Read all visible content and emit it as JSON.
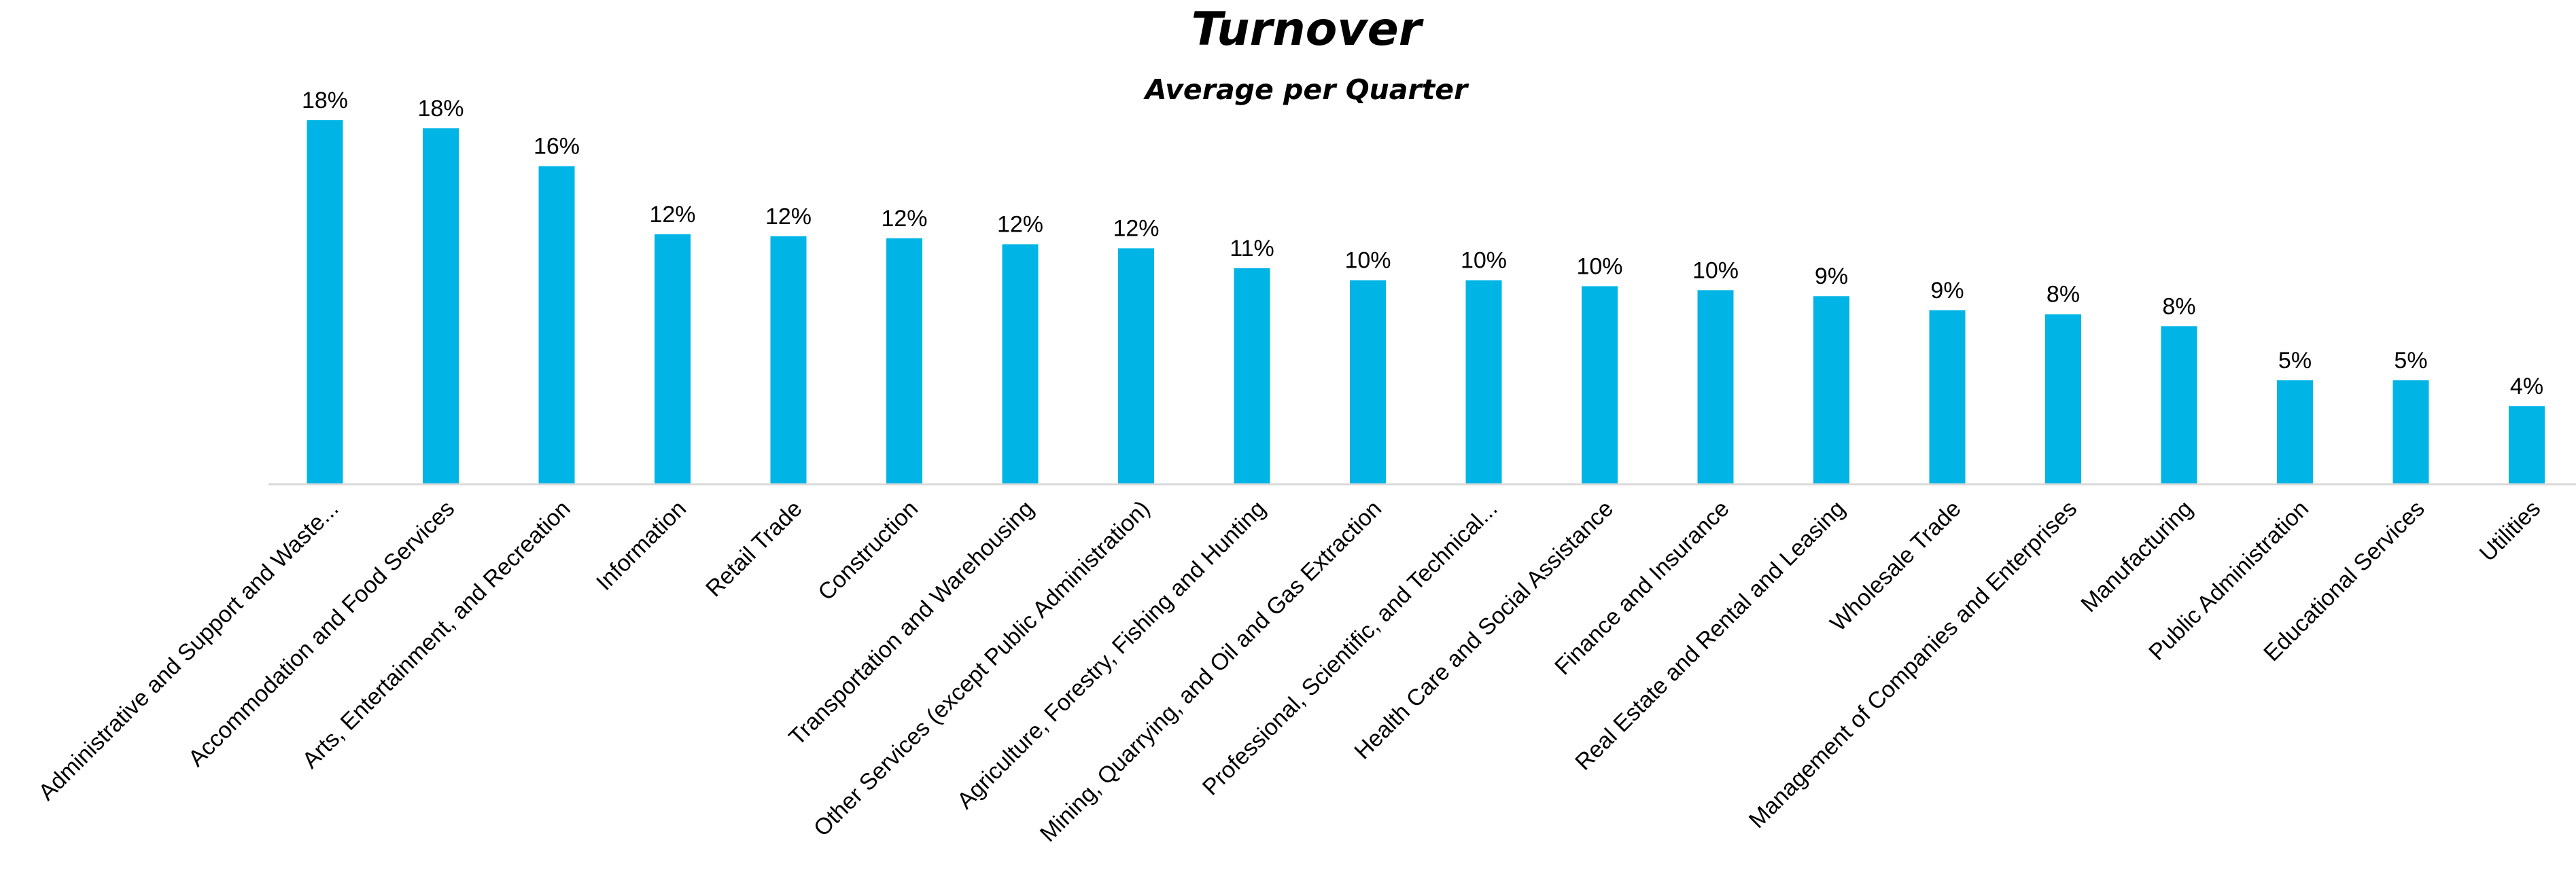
{
  "chart_data": {
    "type": "bar",
    "title": "Turnover",
    "subtitle": "Average per Quarter",
    "xlabel": "",
    "ylabel": "",
    "ylim": [
      0,
      20
    ],
    "grid": false,
    "legend": "none",
    "bar_color": "#00B4E6",
    "axis_color": "#D9D9D9",
    "value_suffix": "%",
    "categories": [
      "Administrative and Support and Waste...",
      "Accommodation and Food Services",
      "Arts, Entertainment, and Recreation",
      "Information",
      "Retail Trade",
      "Construction",
      "Transportation and Warehousing",
      "Other Services (except Public Administration)",
      "Agriculture, Forestry, Fishing and Hunting",
      "Mining, Quarrying, and Oil and Gas Extraction",
      "Professional, Scientific, and Technical...",
      "Health Care and Social Assistance",
      "Finance and Insurance",
      "Real Estate and Rental and Leasing",
      "Wholesale Trade",
      "Management of Companies and Enterprises",
      "Manufacturing",
      "Public Administration",
      "Educational Services",
      "Utilities"
    ],
    "values": [
      18.2,
      17.8,
      15.9,
      12.5,
      12.4,
      12.3,
      12.0,
      11.8,
      10.8,
      10.2,
      10.2,
      9.9,
      9.7,
      9.4,
      8.7,
      8.5,
      7.9,
      5.2,
      5.2,
      3.9
    ],
    "labels": [
      "18%",
      "18%",
      "16%",
      "12%",
      "12%",
      "12%",
      "12%",
      "12%",
      "11%",
      "10%",
      "10%",
      "10%",
      "10%",
      "9%",
      "9%",
      "8%",
      "8%",
      "5%",
      "5%",
      "4%"
    ]
  }
}
